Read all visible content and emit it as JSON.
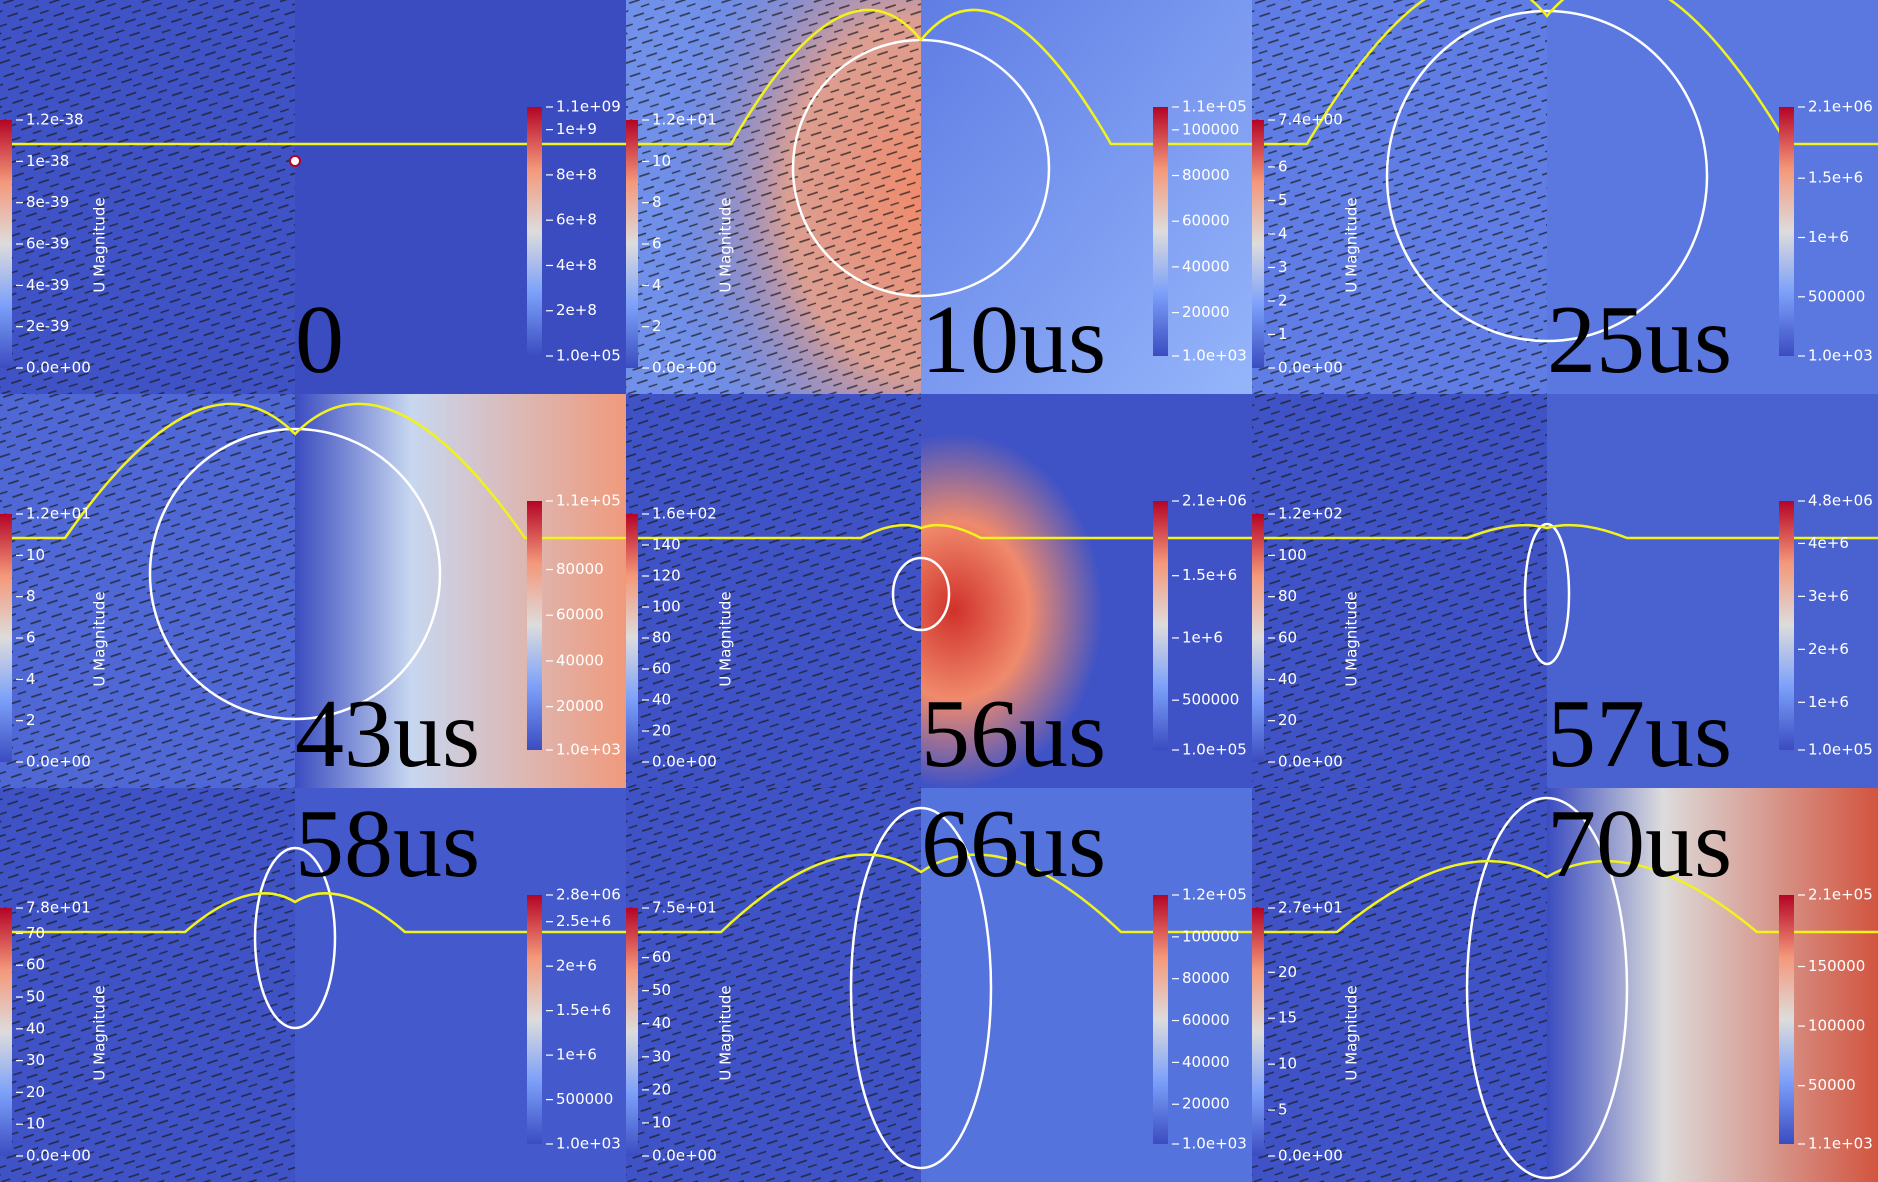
{
  "panels": [
    {
      "time": "0",
      "velocity_bar": {
        "title": "U Magnitude",
        "ticks": [
          "1.2e-38",
          "1e-38",
          "8e-39",
          "6e-39",
          "4e-39",
          "2e-39",
          "0.0e+00"
        ]
      },
      "pressure_bar": {
        "ticks": [
          "1.1e+09",
          "1e+9",
          "8e+8",
          "6e+8",
          "4e+8",
          "2e+8",
          "1.0e+05"
        ]
      }
    },
    {
      "time": "10us",
      "velocity_bar": {
        "title": "U Magnitude",
        "ticks": [
          "1.2e+01",
          "10",
          "8",
          "6",
          "4",
          "2",
          "0.0e+00"
        ]
      },
      "pressure_bar": {
        "ticks": [
          "1.1e+05",
          "100000",
          "80000",
          "60000",
          "40000",
          "20000",
          "1.0e+03"
        ]
      }
    },
    {
      "time": "25us",
      "velocity_bar": {
        "title": "U Magnitude",
        "ticks": [
          "7.4e+00",
          "6",
          "5",
          "4",
          "3",
          "2",
          "1",
          "0.0e+00"
        ]
      },
      "pressure_bar": {
        "ticks": [
          "2.1e+06",
          "1.5e+6",
          "1e+6",
          "500000",
          "1.0e+03"
        ]
      }
    },
    {
      "time": "43us",
      "velocity_bar": {
        "title": "U Magnitude",
        "ticks": [
          "1.2e+01",
          "10",
          "8",
          "6",
          "4",
          "2",
          "0.0e+00"
        ]
      },
      "pressure_bar": {
        "ticks": [
          "1.1e+05",
          "80000",
          "60000",
          "40000",
          "20000",
          "1.0e+03"
        ]
      }
    },
    {
      "time": "56us",
      "velocity_bar": {
        "title": "U Magnitude",
        "ticks": [
          "1.6e+02",
          "140",
          "120",
          "100",
          "80",
          "60",
          "40",
          "20",
          "0.0e+00"
        ]
      },
      "pressure_bar": {
        "ticks": [
          "2.1e+06",
          "1.5e+6",
          "1e+6",
          "500000",
          "1.0e+05"
        ]
      }
    },
    {
      "time": "57us",
      "velocity_bar": {
        "title": "U Magnitude",
        "ticks": [
          "1.2e+02",
          "100",
          "80",
          "60",
          "40",
          "20",
          "0.0e+00"
        ]
      },
      "pressure_bar": {
        "ticks": [
          "4.8e+06",
          "4e+6",
          "3e+6",
          "2e+6",
          "1e+6",
          "1.0e+05"
        ]
      }
    },
    {
      "time": "58us",
      "velocity_bar": {
        "title": "U Magnitude",
        "ticks": [
          "7.8e+01",
          "70",
          "60",
          "50",
          "40",
          "30",
          "20",
          "10",
          "0.0e+00"
        ]
      },
      "pressure_bar": {
        "ticks": [
          "2.8e+06",
          "2.5e+6",
          "2e+6",
          "1.5e+6",
          "1e+6",
          "500000",
          "1.0e+03"
        ]
      }
    },
    {
      "time": "66us",
      "velocity_bar": {
        "title": "U Magnitude",
        "ticks": [
          "7.5e+01",
          "60",
          "50",
          "40",
          "30",
          "20",
          "10",
          "0.0e+00"
        ]
      },
      "pressure_bar": {
        "ticks": [
          "1.2e+05",
          "100000",
          "80000",
          "60000",
          "40000",
          "20000",
          "1.0e+03"
        ]
      }
    },
    {
      "time": "70us",
      "velocity_bar": {
        "title": "U Magnitude",
        "ticks": [
          "2.7e+01",
          "20",
          "15",
          "10",
          "5",
          "0.0e+00"
        ]
      },
      "pressure_bar": {
        "ticks": [
          "2.1e+05",
          "150000",
          "100000",
          "50000",
          "1.1e+03"
        ]
      }
    }
  ]
}
